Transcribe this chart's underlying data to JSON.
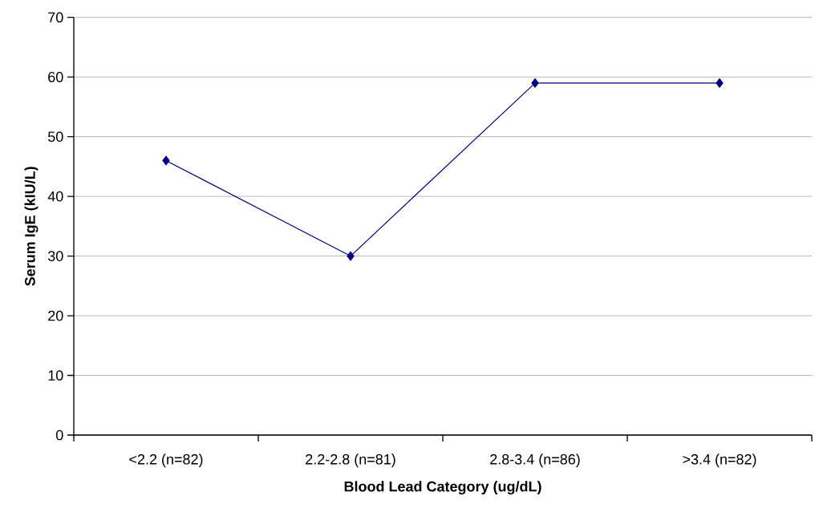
{
  "chart_data": {
    "type": "line",
    "xlabel": "Blood Lead Category (ug/dL)",
    "ylabel": "Serum IgE (kIU/L)",
    "categories": [
      "<2.2 (n=82)",
      "2.2-2.8 (n=81)",
      "2.8-3.4 (n=86)",
      ">3.4 (n=82)"
    ],
    "values": [
      46,
      30,
      59,
      59
    ],
    "color": "#000080",
    "marker": "diamond",
    "line_style": "solid",
    "ylim": [
      0,
      70
    ],
    "yticks": [
      0,
      10,
      20,
      30,
      40,
      50,
      60,
      70
    ],
    "grid": "y"
  }
}
